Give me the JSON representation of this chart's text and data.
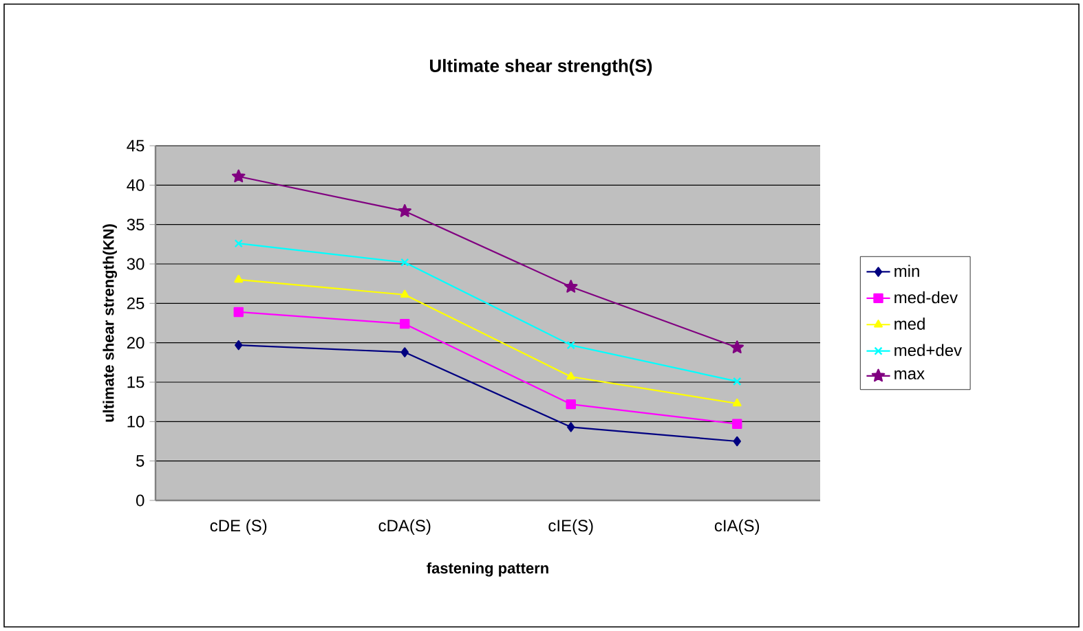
{
  "chart_data": {
    "type": "line",
    "title": "Ultimate shear strength(S)",
    "xlabel": "fastening pattern",
    "ylabel": "ultimate shear strength(KN)",
    "categories": [
      "cDE (S)",
      "cDA(S)",
      "cIE(S)",
      "cIA(S)"
    ],
    "series": [
      {
        "name": "min",
        "color": "#000080",
        "marker": "diamond",
        "values": [
          19.7,
          18.8,
          9.3,
          7.5
        ]
      },
      {
        "name": "med-dev",
        "color": "#ff00ff",
        "marker": "square",
        "values": [
          23.9,
          22.4,
          12.2,
          9.7
        ]
      },
      {
        "name": "med",
        "color": "#ffff00",
        "marker": "triangle",
        "values": [
          28.0,
          26.1,
          15.7,
          12.3
        ]
      },
      {
        "name": "med+dev",
        "color": "#00ffff",
        "marker": "cross",
        "values": [
          32.6,
          30.2,
          19.7,
          15.1
        ]
      },
      {
        "name": "max",
        "color": "#800080",
        "marker": "star",
        "values": [
          41.1,
          36.7,
          27.1,
          19.4
        ]
      }
    ],
    "ylim": [
      0,
      45
    ],
    "yticks": [
      0,
      5,
      10,
      15,
      20,
      25,
      30,
      35,
      40,
      45
    ],
    "grid": "y",
    "legend": "right"
  }
}
